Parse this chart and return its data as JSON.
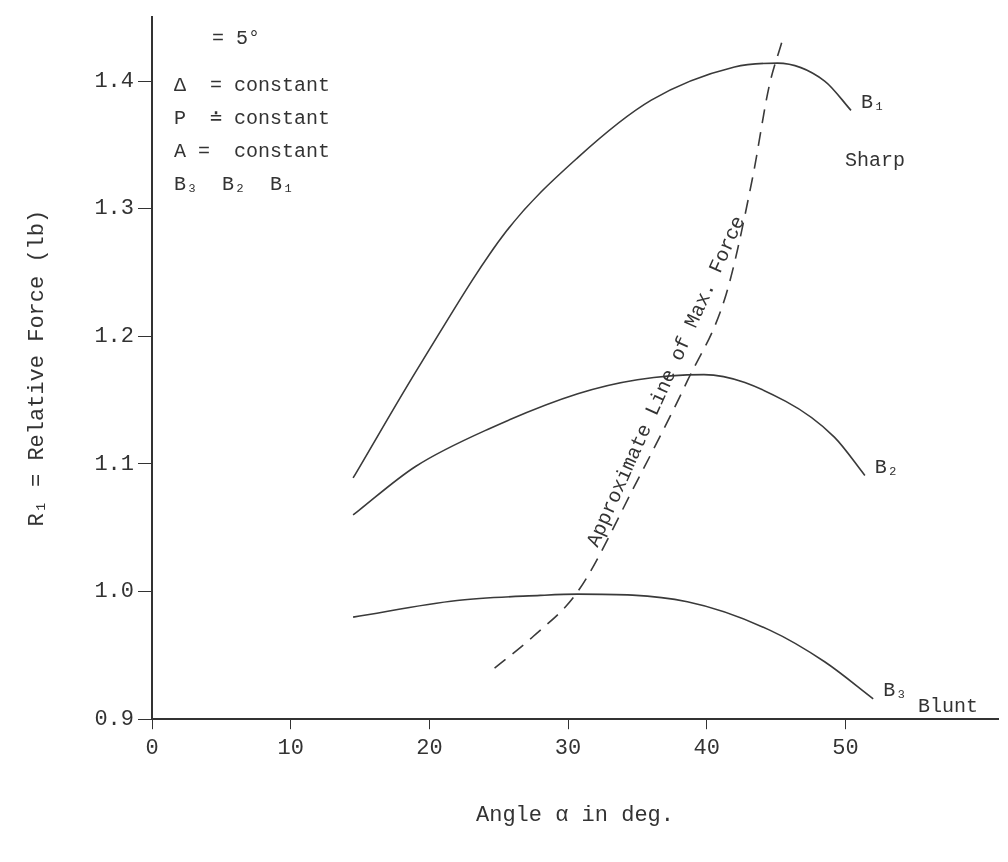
{
  "chart_data": {
    "type": "line",
    "xlabel": "Angle α in deg.",
    "ylabel": "R₁ = Relative Force (lb)",
    "xlim": [
      0,
      61
    ],
    "xticks": [
      0,
      10,
      20,
      30,
      40,
      50
    ],
    "ylim": [
      0.9,
      1.45
    ],
    "yticks": [
      0.9,
      {
        "value": 1.0,
        "label": "1.0"
      },
      1.1,
      1.2,
      1.3,
      1.4
    ],
    "grid": false,
    "legend": false,
    "marker": "none",
    "series": [
      {
        "name": "B₁",
        "color": "#3a3a3a",
        "x": [
          14.5,
          19.4,
          25.6,
          30.7,
          36,
          42,
          45.1,
          48.5,
          50.4
        ],
        "values": [
          1.089,
          1.179,
          1.283,
          1.34,
          1.385,
          1.411,
          1.414,
          1.4,
          1.377
        ]
      },
      {
        "name": "B₂",
        "color": "#3a3a3a",
        "x": [
          14.5,
          19,
          24.4,
          30.7,
          35,
          39.8,
          45.7,
          49.2,
          51.4
        ],
        "values": [
          1.06,
          1.098,
          1.128,
          1.155,
          1.166,
          1.17,
          1.149,
          1.121,
          1.091
        ]
      },
      {
        "name": "B₃",
        "color": "#3a3a3a",
        "x": [
          14.5,
          22,
          28,
          30.7,
          38.6,
          44.5,
          48.5,
          52
        ],
        "values": [
          0.98,
          0.993,
          0.997,
          0.998,
          0.992,
          0.97,
          0.945,
          0.916
        ]
      },
      {
        "color": "#3a3a3a",
        "line_style": "dashed",
        "x": [
          24.7,
          27.5,
          30.7,
          34.9,
          38.6,
          41.4,
          43.3,
          44.5,
          45.4
        ],
        "values": [
          0.94,
          0.965,
          1.0,
          1.085,
          1.165,
          1.233,
          1.324,
          1.396,
          1.43
        ]
      }
    ],
    "annotations": [
      "= 5°",
      "Δ  = constant",
      "P  ≐ constant",
      "A =  constant",
      "B₃  B₂  B₁",
      "Sharp",
      "Blunt",
      {
        "text": "Approximate Line of Max. Force",
        "x": 38,
        "y": 1.16
      }
    ]
  }
}
